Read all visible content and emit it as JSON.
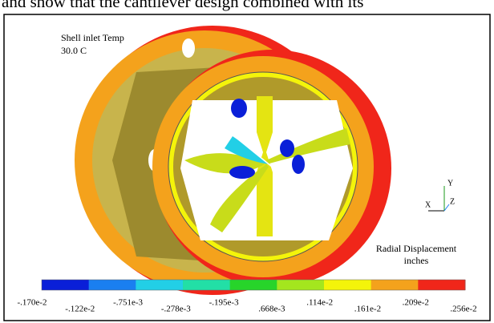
{
  "header_text": "and show that the cantilever design combined with its",
  "figure": {
    "annotation_lines": [
      "Shell inlet Temp",
      "30.0 C"
    ],
    "axis_labels": {
      "x": "X",
      "y": "Y",
      "z": "Z"
    },
    "legend": {
      "title": "Radial Displacement",
      "unit": "inches",
      "colors": [
        "#0a1fd8",
        "#1a7ff0",
        "#22cfe6",
        "#22dfa6",
        "#27d42a",
        "#a4e61e",
        "#f4f40a",
        "#f4a21c",
        "#f0261a"
      ],
      "labels": [
        "-.170e-2",
        "-.122e-2",
        "-.751e-3",
        "-.278e-3",
        "-.195e-3",
        ".668e-3",
        ".114e-2",
        ".161e-2",
        ".209e-2",
        ".256e-2"
      ]
    }
  }
}
